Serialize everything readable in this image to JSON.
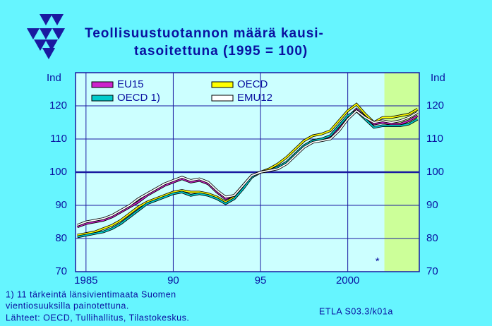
{
  "chart_data": {
    "type": "line",
    "title": "Teollisuustuotannon  määrä  kausi-",
    "subtitle": "tasoitettuna  (1995 = 100)",
    "ylabel": "Ind",
    "footnote_1": "1)  11 tärkeintä länsivientimaata Suomen",
    "footnote_2": "vientiosuuksilla painotettuna.",
    "source": "Lähteet:   OECD, Tullihallitus, Tilastokeskus.",
    "code": "ETLA S03.3/k01a",
    "annotation": "*",
    "x": [
      1984.5,
      1985,
      1985.5,
      1986,
      1986.5,
      1987,
      1987.5,
      1988,
      1988.5,
      1989,
      1989.5,
      1990,
      1990.5,
      1991,
      1991.5,
      1992,
      1992.5,
      1993,
      1993.5,
      1994,
      1994.5,
      1995,
      1995.5,
      1996,
      1996.5,
      1997,
      1997.5,
      1998,
      1998.5,
      1999,
      1999.5,
      2000,
      2000.5,
      2001,
      2001.5,
      2002,
      2002.5,
      2003,
      2003.5,
      2004
    ],
    "series": [
      {
        "name": "EU15",
        "color": "#cc22cc",
        "values": [
          83.5,
          84.5,
          85,
          85.5,
          86.5,
          88,
          89.5,
          91,
          93,
          94.5,
          96,
          97,
          98,
          97,
          97.5,
          96.5,
          94,
          92,
          93,
          96,
          99,
          100,
          100.5,
          101.5,
          103,
          105.5,
          108,
          109.5,
          110,
          110.5,
          113,
          116.5,
          119,
          116.5,
          114.5,
          115,
          114.5,
          114.5,
          115.5,
          117
        ]
      },
      {
        "name": "OECD",
        "color": "#ffff00",
        "values": [
          81,
          81.5,
          82,
          83,
          84,
          85.5,
          87.5,
          89.5,
          91,
          92,
          93,
          94,
          94.5,
          94,
          94,
          93.5,
          92.5,
          91,
          92.5,
          95.5,
          98.5,
          100,
          101,
          102.5,
          104.5,
          107,
          109.5,
          111,
          111.5,
          112.5,
          115.5,
          118.5,
          120.5,
          117.5,
          115,
          116.5,
          116.5,
          117,
          117.5,
          119
        ]
      },
      {
        "name": "OECD 1)",
        "color": "#00cccc",
        "values": [
          80.5,
          81,
          81.5,
          82,
          83,
          84.5,
          86.5,
          88.5,
          90.5,
          91.5,
          92.5,
          93.5,
          94,
          93,
          93.5,
          93,
          92,
          90.5,
          92,
          95,
          98.5,
          100,
          100.5,
          101.5,
          103,
          105.5,
          108,
          109.5,
          110,
          111,
          114,
          117,
          118.5,
          116,
          113.5,
          114,
          114,
          114,
          114.5,
          116
        ]
      },
      {
        "name": "EMU12",
        "color": "#ffffff",
        "values": [
          84,
          85,
          85.5,
          86,
          87,
          88.5,
          90,
          92,
          93.5,
          95,
          96.5,
          97.5,
          98.5,
          97.5,
          98,
          97,
          94.5,
          92.5,
          93,
          96,
          99,
          100,
          100.5,
          101,
          102.5,
          105,
          107.5,
          109,
          109.5,
          110,
          112.5,
          116,
          118.5,
          116.5,
          115,
          115.5,
          115,
          115.5,
          116.5,
          118
        ]
      }
    ],
    "xlim": [
      1984.4,
      2004.1
    ],
    "xticks": [
      1985,
      {
        "value": 1990,
        "label": "90"
      },
      {
        "value": 1995,
        "label": "95"
      },
      2000
    ],
    "ylim": [
      70,
      130
    ],
    "yticks": [
      70,
      80,
      90,
      100,
      110,
      120
    ],
    "reference_line": 100,
    "forecast_from": 2002.1,
    "annotation_x": 2001.7,
    "annotation_y": 73,
    "grid": true
  }
}
